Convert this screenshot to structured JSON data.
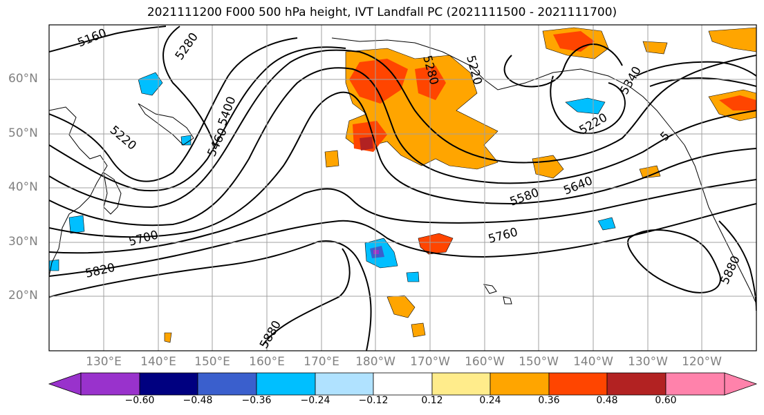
{
  "title": "2021111200 F000 500 hPa height, IVT Landfall PC (2021111500 - 2021111700)",
  "lat_labels": [
    "60°N",
    "50°N",
    "40°N",
    "30°N",
    "20°N"
  ],
  "lon_labels": [
    "130°E",
    "140°E",
    "150°E",
    "160°E",
    "170°E",
    "180°W",
    "170°W",
    "160°W",
    "150°W",
    "140°W",
    "130°W",
    "120°W"
  ],
  "contour_labels": [
    "5160",
    "5280",
    "5220",
    "5400",
    "5460",
    "5700",
    "5820",
    "5280",
    "5220",
    "5220",
    "5340",
    "5580",
    "5640",
    "5760",
    "5880",
    "5880",
    "5"
  ],
  "colorbar": {
    "ticks": [
      "−0.60",
      "−0.48",
      "−0.36",
      "−0.24",
      "−0.12",
      "0.12",
      "0.24",
      "0.36",
      "0.48",
      "0.60"
    ],
    "colors": [
      "#9932cc",
      "#000080",
      "#3a5fcd",
      "#00bfff",
      "#b0e2ff",
      "#ffffff",
      "#ffec8b",
      "#ffa500",
      "#ff4500",
      "#b22222",
      "#ff82ab"
    ]
  }
}
